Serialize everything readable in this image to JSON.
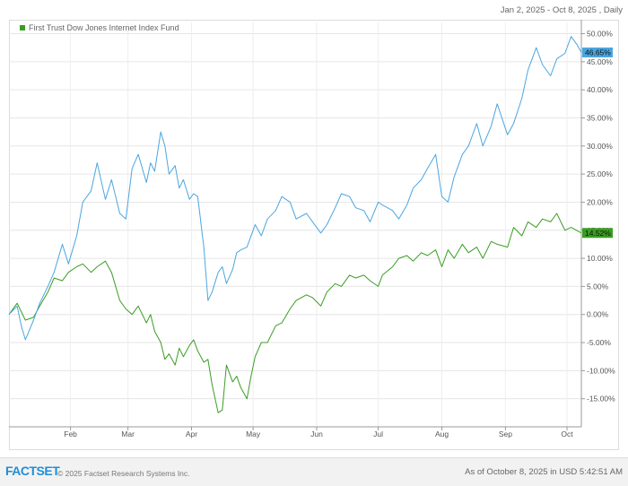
{
  "header": {
    "date_range": "Jan 2, 2025 - Oct 8, 2025 , Daily"
  },
  "footer": {
    "logo": "FACTSET",
    "copyright": "© 2025 Factset Research Systems Inc.",
    "as_of": "As of October 8, 2025 in USD 5:42:51 AM"
  },
  "chart_data": {
    "type": "line",
    "title": "",
    "xlabel": "",
    "ylabel": "",
    "x_ticks": [
      {
        "label": "Feb",
        "date": "2025-02-01"
      },
      {
        "label": "Mar",
        "date": "2025-03-01"
      },
      {
        "label": "Apr",
        "date": "2025-04-01"
      },
      {
        "label": "May",
        "date": "2025-05-01"
      },
      {
        "label": "Jun",
        "date": "2025-06-01"
      },
      {
        "label": "Jul",
        "date": "2025-07-01"
      },
      {
        "label": "Aug",
        "date": "2025-08-01"
      },
      {
        "label": "Sep",
        "date": "2025-09-01"
      },
      {
        "label": "Oct",
        "date": "2025-10-01"
      }
    ],
    "xlim": [
      "2025-01-02",
      "2025-10-08"
    ],
    "ylim": [
      -20,
      52
    ],
    "y_ticks": [
      -15,
      -10,
      -5,
      0,
      5,
      10,
      15,
      20,
      25,
      30,
      35,
      40,
      45,
      50
    ],
    "y_tick_labels": [
      "-15.00%",
      "-10.00%",
      "-5.00%",
      "0.00%",
      "5.00%",
      "10.00%",
      "15.00%",
      "20.00%",
      "25.00%",
      "30.00%",
      "35.00%",
      "40.00%",
      "45.00%",
      "50.00%"
    ],
    "grid": true,
    "legend_position": "top-left",
    "series": [
      {
        "name": "First Trust Dow Jones Internet Index Fund",
        "color": "#3a9d23",
        "show_in_legend": true,
        "last_value_label": "14.52%",
        "points": [
          [
            "2025-01-02",
            0.0
          ],
          [
            "2025-01-06",
            2.0
          ],
          [
            "2025-01-10",
            -1.0
          ],
          [
            "2025-01-14",
            -0.5
          ],
          [
            "2025-01-17",
            1.5
          ],
          [
            "2025-01-21",
            4.0
          ],
          [
            "2025-01-24",
            6.5
          ],
          [
            "2025-01-28",
            6.0
          ],
          [
            "2025-01-31",
            7.5
          ],
          [
            "2025-02-04",
            8.5
          ],
          [
            "2025-02-07",
            9.0
          ],
          [
            "2025-02-11",
            7.5
          ],
          [
            "2025-02-14",
            8.5
          ],
          [
            "2025-02-18",
            9.5
          ],
          [
            "2025-02-21",
            7.5
          ],
          [
            "2025-02-25",
            2.5
          ],
          [
            "2025-02-28",
            1.0
          ],
          [
            "2025-03-03",
            0.0
          ],
          [
            "2025-03-06",
            1.5
          ],
          [
            "2025-03-10",
            -1.5
          ],
          [
            "2025-03-12",
            0.0
          ],
          [
            "2025-03-14",
            -3.0
          ],
          [
            "2025-03-17",
            -5.0
          ],
          [
            "2025-03-19",
            -8.0
          ],
          [
            "2025-03-21",
            -7.0
          ],
          [
            "2025-03-24",
            -9.0
          ],
          [
            "2025-03-26",
            -6.0
          ],
          [
            "2025-03-28",
            -7.5
          ],
          [
            "2025-03-31",
            -5.5
          ],
          [
            "2025-04-02",
            -4.5
          ],
          [
            "2025-04-04",
            -6.5
          ],
          [
            "2025-04-07",
            -8.5
          ],
          [
            "2025-04-09",
            -8.0
          ],
          [
            "2025-04-11",
            -12.5
          ],
          [
            "2025-04-14",
            -17.5
          ],
          [
            "2025-04-16",
            -17.0
          ],
          [
            "2025-04-18",
            -9.0
          ],
          [
            "2025-04-21",
            -12.0
          ],
          [
            "2025-04-23",
            -11.0
          ],
          [
            "2025-04-25",
            -13.0
          ],
          [
            "2025-04-28",
            -15.0
          ],
          [
            "2025-04-30",
            -11.0
          ],
          [
            "2025-05-02",
            -7.5
          ],
          [
            "2025-05-05",
            -5.0
          ],
          [
            "2025-05-08",
            -5.0
          ],
          [
            "2025-05-12",
            -2.0
          ],
          [
            "2025-05-15",
            -1.5
          ],
          [
            "2025-05-19",
            1.0
          ],
          [
            "2025-05-22",
            2.5
          ],
          [
            "2025-05-27",
            3.5
          ],
          [
            "2025-05-30",
            3.0
          ],
          [
            "2025-06-03",
            1.5
          ],
          [
            "2025-06-06",
            4.0
          ],
          [
            "2025-06-10",
            5.5
          ],
          [
            "2025-06-13",
            5.0
          ],
          [
            "2025-06-17",
            7.0
          ],
          [
            "2025-06-20",
            6.5
          ],
          [
            "2025-06-24",
            7.0
          ],
          [
            "2025-06-27",
            6.0
          ],
          [
            "2025-07-01",
            5.0
          ],
          [
            "2025-07-03",
            7.0
          ],
          [
            "2025-07-08",
            8.5
          ],
          [
            "2025-07-11",
            10.0
          ],
          [
            "2025-07-15",
            10.5
          ],
          [
            "2025-07-18",
            9.5
          ],
          [
            "2025-07-22",
            11.0
          ],
          [
            "2025-07-25",
            10.5
          ],
          [
            "2025-07-29",
            11.5
          ],
          [
            "2025-08-01",
            8.5
          ],
          [
            "2025-08-04",
            11.5
          ],
          [
            "2025-08-07",
            10.0
          ],
          [
            "2025-08-11",
            12.5
          ],
          [
            "2025-08-14",
            11.0
          ],
          [
            "2025-08-18",
            12.0
          ],
          [
            "2025-08-21",
            10.0
          ],
          [
            "2025-08-25",
            13.0
          ],
          [
            "2025-08-28",
            12.5
          ],
          [
            "2025-09-02",
            12.0
          ],
          [
            "2025-09-05",
            15.5
          ],
          [
            "2025-09-09",
            14.0
          ],
          [
            "2025-09-12",
            16.5
          ],
          [
            "2025-09-16",
            15.5
          ],
          [
            "2025-09-19",
            17.0
          ],
          [
            "2025-09-23",
            16.5
          ],
          [
            "2025-09-26",
            18.0
          ],
          [
            "2025-09-30",
            15.0
          ],
          [
            "2025-10-03",
            15.5
          ],
          [
            "2025-10-08",
            14.52
          ]
        ]
      },
      {
        "name": "",
        "color": "#4aa6e0",
        "show_in_legend": false,
        "last_value_label": "46.65%",
        "points": [
          [
            "2025-01-02",
            0.0
          ],
          [
            "2025-01-06",
            1.5
          ],
          [
            "2025-01-08",
            -2.0
          ],
          [
            "2025-01-10",
            -4.5
          ],
          [
            "2025-01-14",
            -1.0
          ],
          [
            "2025-01-17",
            2.0
          ],
          [
            "2025-01-21",
            5.0
          ],
          [
            "2025-01-24",
            7.5
          ],
          [
            "2025-01-28",
            12.5
          ],
          [
            "2025-01-31",
            9.0
          ],
          [
            "2025-02-04",
            14.0
          ],
          [
            "2025-02-07",
            20.0
          ],
          [
            "2025-02-11",
            22.0
          ],
          [
            "2025-02-14",
            27.0
          ],
          [
            "2025-02-18",
            20.5
          ],
          [
            "2025-02-21",
            24.0
          ],
          [
            "2025-02-25",
            18.0
          ],
          [
            "2025-02-28",
            17.0
          ],
          [
            "2025-03-03",
            26.0
          ],
          [
            "2025-03-06",
            28.5
          ],
          [
            "2025-03-10",
            23.5
          ],
          [
            "2025-03-12",
            27.0
          ],
          [
            "2025-03-14",
            25.5
          ],
          [
            "2025-03-17",
            32.5
          ],
          [
            "2025-03-19",
            30.0
          ],
          [
            "2025-03-21",
            25.0
          ],
          [
            "2025-03-24",
            26.5
          ],
          [
            "2025-03-26",
            22.5
          ],
          [
            "2025-03-28",
            24.0
          ],
          [
            "2025-03-31",
            20.5
          ],
          [
            "2025-04-02",
            21.5
          ],
          [
            "2025-04-04",
            21.0
          ],
          [
            "2025-04-07",
            12.0
          ],
          [
            "2025-04-09",
            2.5
          ],
          [
            "2025-04-11",
            4.0
          ],
          [
            "2025-04-14",
            7.5
          ],
          [
            "2025-04-16",
            8.5
          ],
          [
            "2025-04-18",
            5.5
          ],
          [
            "2025-04-21",
            8.0
          ],
          [
            "2025-04-23",
            11.0
          ],
          [
            "2025-04-25",
            11.5
          ],
          [
            "2025-04-28",
            12.0
          ],
          [
            "2025-05-02",
            16.0
          ],
          [
            "2025-05-05",
            14.0
          ],
          [
            "2025-05-08",
            17.0
          ],
          [
            "2025-05-12",
            18.5
          ],
          [
            "2025-05-15",
            21.0
          ],
          [
            "2025-05-19",
            20.0
          ],
          [
            "2025-05-22",
            17.0
          ],
          [
            "2025-05-27",
            18.0
          ],
          [
            "2025-05-30",
            16.5
          ],
          [
            "2025-06-03",
            14.5
          ],
          [
            "2025-06-06",
            16.0
          ],
          [
            "2025-06-10",
            19.0
          ],
          [
            "2025-06-13",
            21.5
          ],
          [
            "2025-06-17",
            21.0
          ],
          [
            "2025-06-20",
            19.0
          ],
          [
            "2025-06-24",
            18.5
          ],
          [
            "2025-06-27",
            16.5
          ],
          [
            "2025-07-01",
            20.0
          ],
          [
            "2025-07-03",
            19.5
          ],
          [
            "2025-07-08",
            18.5
          ],
          [
            "2025-07-11",
            17.0
          ],
          [
            "2025-07-15",
            19.5
          ],
          [
            "2025-07-18",
            22.5
          ],
          [
            "2025-07-22",
            24.0
          ],
          [
            "2025-07-25",
            26.0
          ],
          [
            "2025-07-29",
            28.5
          ],
          [
            "2025-08-01",
            21.0
          ],
          [
            "2025-08-04",
            20.0
          ],
          [
            "2025-08-07",
            24.5
          ],
          [
            "2025-08-11",
            28.5
          ],
          [
            "2025-08-14",
            30.0
          ],
          [
            "2025-08-18",
            34.0
          ],
          [
            "2025-08-21",
            30.0
          ],
          [
            "2025-08-25",
            33.5
          ],
          [
            "2025-08-28",
            37.5
          ],
          [
            "2025-09-02",
            32.0
          ],
          [
            "2025-09-05",
            34.0
          ],
          [
            "2025-09-09",
            38.5
          ],
          [
            "2025-09-12",
            43.5
          ],
          [
            "2025-09-16",
            47.5
          ],
          [
            "2025-09-19",
            44.5
          ],
          [
            "2025-09-23",
            42.5
          ],
          [
            "2025-09-26",
            45.5
          ],
          [
            "2025-09-30",
            46.5
          ],
          [
            "2025-10-03",
            49.5
          ],
          [
            "2025-10-06",
            48.0
          ],
          [
            "2025-10-08",
            46.65
          ]
        ]
      }
    ]
  }
}
